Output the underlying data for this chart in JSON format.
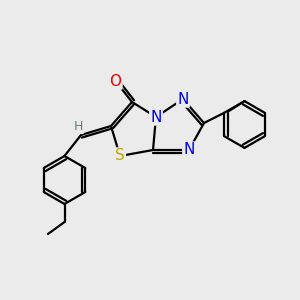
{
  "bg_color": "#ebebeb",
  "atom_colors": {
    "C": "#000000",
    "N": "#0000ee",
    "O": "#ee0000",
    "S": "#bbaa00",
    "H": "#4a8888"
  },
  "bond_color": "#000000",
  "line_width": 1.6,
  "font_size_atom": 11,
  "font_size_small": 9
}
